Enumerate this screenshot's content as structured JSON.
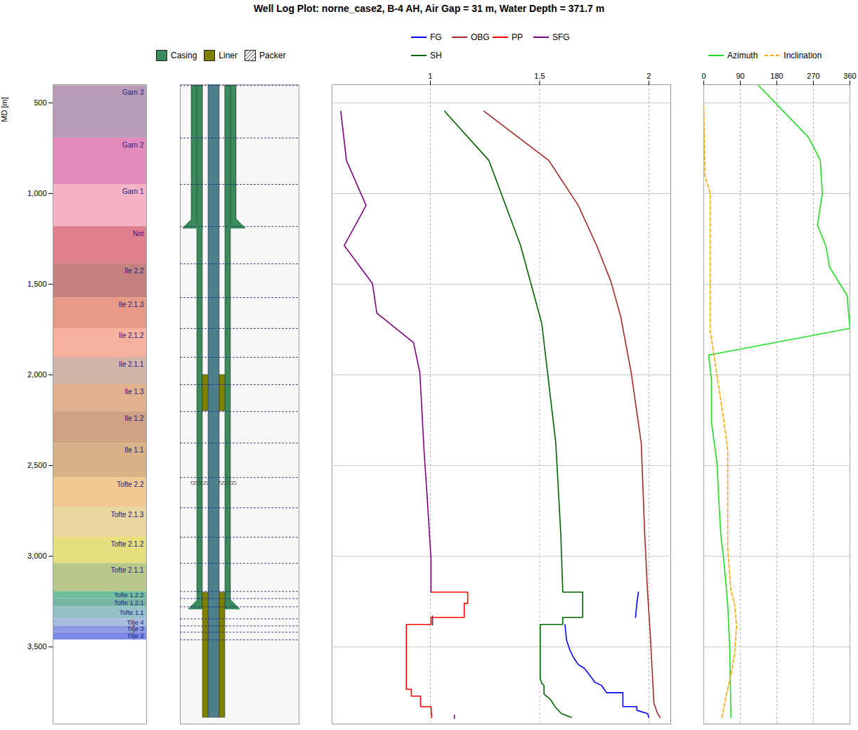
{
  "chart_data": {
    "type": "well_log",
    "title": "Well Log Plot: norne_case2, B-4 AH, Air Gap = 31 m, Water Depth = 371.7 m",
    "y_label": "MD [m]",
    "ylim": [
      400,
      3925
    ],
    "yticks": [
      500,
      {
        "value": 1000,
        "label": "1,000"
      },
      {
        "value": 1500,
        "label": "1,500"
      },
      {
        "value": 2000,
        "label": "2,000"
      },
      {
        "value": 2500,
        "label": "2,500"
      },
      {
        "value": 3000,
        "label": "3,000"
      },
      {
        "value": 3500,
        "label": "3,500"
      }
    ],
    "tracks": [
      {
        "type": "formations",
        "formations": [
          {
            "name": "Garn 3",
            "top": 405,
            "bottom": 694,
            "color": "#b99cb8"
          },
          {
            "name": "Garn 2",
            "top": 694,
            "bottom": 950,
            "color": "#e48bbe"
          },
          {
            "name": "Garn 1",
            "top": 950,
            "bottom": 1182,
            "color": "#f4b4c6"
          },
          {
            "name": "Not",
            "top": 1182,
            "bottom": 1388,
            "color": "#e0808f"
          },
          {
            "name": "Ile 2.2",
            "top": 1388,
            "bottom": 1574,
            "color": "#c4827f"
          },
          {
            "name": "Ile 2.1.3",
            "top": 1574,
            "bottom": 1744,
            "color": "#e99a86"
          },
          {
            "name": "Ile 2.1.2",
            "top": 1744,
            "bottom": 1903,
            "color": "#f8b09f"
          },
          {
            "name": "Ile 2.1.1",
            "top": 1903,
            "bottom": 2054,
            "color": "#d2b5a9"
          },
          {
            "name": "Ile 1.3",
            "top": 2054,
            "bottom": 2202,
            "color": "#e2b290"
          },
          {
            "name": "Ile 1.2",
            "top": 2202,
            "bottom": 2376,
            "color": "#cfa283"
          },
          {
            "name": "Ile 1.1",
            "top": 2376,
            "bottom": 2566,
            "color": "#d7b286"
          },
          {
            "name": "Tofte 2.2",
            "top": 2566,
            "bottom": 2733,
            "color": "#f1ca93"
          },
          {
            "name": "Tofte 2.1.3",
            "top": 2733,
            "bottom": 2895,
            "color": "#ead6a0"
          },
          {
            "name": "Tofte 2.1.2",
            "top": 2895,
            "bottom": 3039,
            "color": "#e7df7e"
          },
          {
            "name": "Tofte 2.1.1",
            "top": 3039,
            "bottom": 3194,
            "color": "#b8c88a"
          },
          {
            "name": "Tofte 1.2.2",
            "top": 3194,
            "bottom": 3233,
            "color": "#6fbf9c"
          },
          {
            "name": "Tofte 1.2.1",
            "top": 3233,
            "bottom": 3279,
            "color": "#78b4a4"
          },
          {
            "name": "Tofte 1.1",
            "top": 3279,
            "bottom": 3345,
            "color": "#93c0c9"
          },
          {
            "name": "Tilje 4",
            "top": 3345,
            "bottom": 3384,
            "color": "#a7bde0"
          },
          {
            "name": "Tilje 3",
            "top": 3384,
            "bottom": 3419,
            "color": "#8b9be0"
          },
          {
            "name": "Tilje 2",
            "top": 3419,
            "bottom": 3461,
            "color": "#7b8ae8"
          }
        ]
      },
      {
        "type": "completion",
        "legend": [
          {
            "name": "Casing",
            "color": "#3a8a5c"
          },
          {
            "name": "Liner",
            "color": "#808000"
          },
          {
            "name": "Packer",
            "color": "#444444",
            "marker": "hatch"
          }
        ],
        "strings": [
          {
            "kind": "Casing",
            "top": 405,
            "bottom": 1190
          },
          {
            "kind": "Casing",
            "top": 405,
            "bottom": 3290
          },
          {
            "kind": "Liner",
            "top": 2000,
            "bottom": 2200
          },
          {
            "kind": "Liner",
            "top": 3200,
            "bottom": 3890
          },
          {
            "kind": "Packer",
            "top": 2590,
            "bottom": 2605
          }
        ]
      },
      {
        "type": "line",
        "xlim": [
          0.55,
          2.1
        ],
        "xticks": [
          1,
          1.5,
          2
        ],
        "grid": true,
        "series": [
          {
            "name": "FG",
            "color": "#0000ff",
            "md": [
              3198,
              3260,
              3337,
              null,
              3376,
              3461,
              3519,
              3558,
              3597,
              3616,
              3655,
              3694,
              3713,
              3752,
              3752,
              3829,
              3829,
              3849,
              3868,
              3888
            ],
            "values": [
              1.952,
              1.945,
              1.939,
              null,
              1.616,
              1.623,
              1.639,
              1.655,
              1.677,
              1.703,
              1.729,
              1.752,
              1.784,
              1.806,
              1.881,
              1.881,
              1.945,
              1.945,
              1.994,
              2.0
            ]
          },
          {
            "name": "OBG",
            "color": "#a52a2a",
            "md": [
              546,
              818,
              1066,
              1287,
              1484,
              1678,
              1988,
              2376,
              2880,
              3198,
              3422,
              3810,
              3868,
              3888
            ],
            "values": [
              1.245,
              1.542,
              1.677,
              1.761,
              1.826,
              1.871,
              1.919,
              1.965,
              1.981,
              1.994,
              2.006,
              2.023,
              2.04,
              2.052
            ]
          },
          {
            "name": "PP",
            "color": "#ff0000",
            "md": [
              3198,
              3198,
              3260,
              3260,
              3337,
              3337,
              3376,
              3376,
              3733,
              3733,
              3771,
              3771,
              3829,
              3829,
              3888
            ],
            "values": [
              1.003,
              1.171,
              1.171,
              1.155,
              1.155,
              1.003,
              1.003,
              0.89,
              0.89,
              0.913,
              0.913,
              0.955,
              0.955,
              1.003,
              1.006
            ]
          },
          {
            "name": "SFG",
            "color": "#800080",
            "md": [
              546,
              818,
              1066,
              1287,
              1496,
              1659,
              1822,
              1988,
              2415,
              2647,
              3015,
              3198,
              null,
              3330,
              3380,
              null,
              3876,
              3895
            ],
            "values": [
              0.59,
              0.616,
              0.706,
              0.606,
              0.735,
              0.755,
              0.923,
              0.952,
              0.971,
              0.984,
              1.003,
              1.003,
              null,
              1.01,
              1.01,
              null,
              1.11,
              1.11
            ]
          },
          {
            "name": "SH",
            "color": "#006400",
            "md": [
              546,
              818,
              1287,
              1717,
              2376,
              2880,
              3198,
              3198,
              3337,
              3337,
              3376,
              3376,
              3674,
              3700,
              3713,
              3760,
              3790,
              3829,
              3868,
              3888
            ],
            "values": [
              1.065,
              1.268,
              1.413,
              1.51,
              1.574,
              1.597,
              1.606,
              1.697,
              1.697,
              1.606,
              1.606,
              1.503,
              1.503,
              1.51,
              1.52,
              1.52,
              1.55,
              1.57,
              1.6,
              1.645
            ]
          }
        ]
      },
      {
        "type": "line",
        "xlim": [
          0,
          360
        ],
        "xticks": [
          0,
          90,
          180,
          270,
          360
        ],
        "grid": true,
        "series": [
          {
            "name": "Azimuth",
            "color": "#22dd22",
            "line_style": "solid",
            "md": [
              405,
              690,
              818,
              1000,
              1174,
              1291,
              1407,
              1562,
              1744,
              1891,
              2027,
              2260,
              2492,
              2647,
              2880,
              3035,
              3267,
              3500,
              3888
            ],
            "values": [
              135,
              258,
              287,
              292,
              280,
              301,
              310,
              353,
              360,
              12,
              19,
              19,
              33,
              36,
              42,
              50,
              59,
              64,
              67
            ]
          },
          {
            "name": "Inclination",
            "color": "#ffa500",
            "line_style": "dashed",
            "md": [
              516,
              903,
              1000,
              1756,
              1950,
              2260,
              2415,
              2957,
              3190,
              3267,
              3384,
              3539,
              3655,
              3771,
              3888
            ],
            "values": [
              0,
              3,
              16,
              16,
              29,
              50,
              59,
              59,
              67,
              76,
              81,
              76,
              67,
              55,
              45
            ]
          }
        ]
      }
    ]
  }
}
